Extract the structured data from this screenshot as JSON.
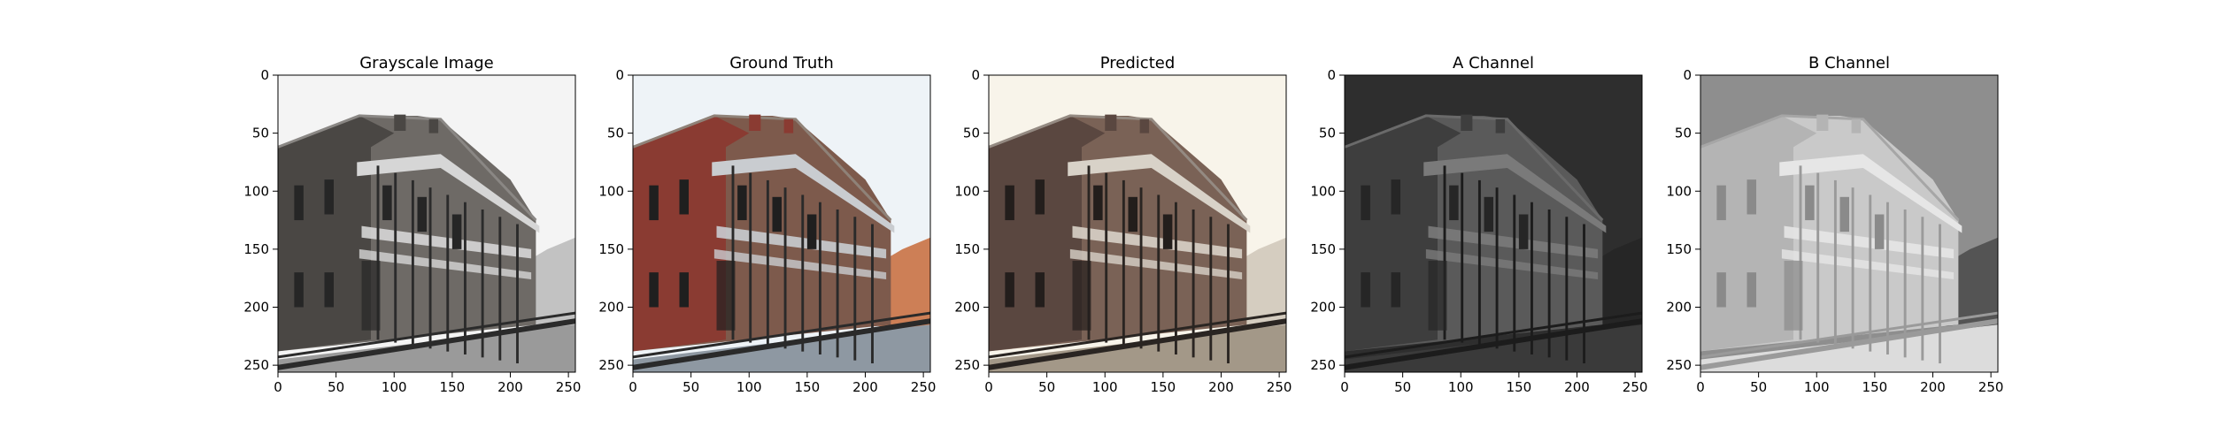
{
  "chart_data": [
    {
      "type": "image",
      "title": "Grayscale Image",
      "xticks": [
        "0",
        "50",
        "100",
        "150",
        "200",
        "250"
      ],
      "yticks": [
        "0",
        "50",
        "100",
        "150",
        "200",
        "250"
      ],
      "xlim": [
        0,
        256
      ],
      "ylim": [
        256,
        0
      ],
      "palette": "gray"
    },
    {
      "type": "image",
      "title": "Ground Truth",
      "xticks": [
        "0",
        "50",
        "100",
        "150",
        "200",
        "250"
      ],
      "yticks": [
        "0",
        "50",
        "100",
        "150",
        "200",
        "250"
      ],
      "xlim": [
        0,
        256
      ],
      "ylim": [
        256,
        0
      ],
      "palette": "color"
    },
    {
      "type": "image",
      "title": "Predicted",
      "xticks": [
        "0",
        "50",
        "100",
        "150",
        "200",
        "250"
      ],
      "yticks": [
        "0",
        "50",
        "100",
        "150",
        "200",
        "250"
      ],
      "xlim": [
        0,
        256
      ],
      "ylim": [
        256,
        0
      ],
      "palette": "warm"
    },
    {
      "type": "image",
      "title": "A Channel",
      "xticks": [
        "0",
        "50",
        "100",
        "150",
        "200",
        "250"
      ],
      "yticks": [
        "0",
        "50",
        "100",
        "150",
        "200",
        "250"
      ],
      "xlim": [
        0,
        256
      ],
      "ylim": [
        256,
        0
      ],
      "palette": "dark"
    },
    {
      "type": "image",
      "title": "B Channel",
      "xticks": [
        "0",
        "50",
        "100",
        "150",
        "200",
        "250"
      ],
      "yticks": [
        "0",
        "50",
        "100",
        "150",
        "200",
        "250"
      ],
      "xlim": [
        0,
        256
      ],
      "ylim": [
        256,
        0
      ],
      "palette": "light"
    }
  ],
  "colors": {
    "gray": {
      "sky": "#f4f4f4",
      "wall": "#6e6a66",
      "wall_dark": "#4a4744",
      "roof": "#8a8784",
      "trees": "#b8b8b8",
      "ground": "#9a9a9a",
      "rail": "#2b2b2b",
      "window": "#262626",
      "porch": "#d6d6d6"
    },
    "color": {
      "sky": "#eef3f7",
      "wall": "#7d5a4c",
      "wall_dark": "#8a3b32",
      "roof": "#8f8278",
      "trees": "#c76a3a",
      "ground": "#8e98a2",
      "rail": "#2a2a2a",
      "window": "#1f1f1f",
      "porch": "#c9ccd0"
    },
    "warm": {
      "sky": "#f8f4ea",
      "wall": "#7a6256",
      "wall_dark": "#5a4740",
      "roof": "#948a82",
      "trees": "#cfc6b8",
      "ground": "#a39888",
      "rail": "#2a2522",
      "window": "#231e1c",
      "porch": "#d8d2c8"
    },
    "dark": {
      "sky": "#2e2e2e",
      "wall": "#5a5a5a",
      "wall_dark": "#3e3e3e",
      "roof": "#6a6a6a",
      "trees": "#242424",
      "ground": "#3a3a3a",
      "rail": "#1c1c1c",
      "window": "#262626",
      "porch": "#7a7a7a"
    },
    "light": {
      "sky": "#8e8e8e",
      "wall": "#c9c9c9",
      "wall_dark": "#b4b4b4",
      "roof": "#a6a6a6",
      "trees": "#4a4a4a",
      "ground": "#dcdcdc",
      "rail": "#9a9a9a",
      "window": "#8a8a8a",
      "porch": "#e6e6e6"
    }
  }
}
